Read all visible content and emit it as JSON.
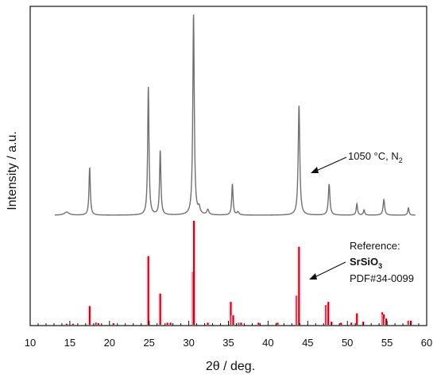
{
  "chart_data": {
    "type": "line",
    "xlabel": "2θ / deg.",
    "ylabel": "Intensity / a.u.",
    "xlim": [
      10,
      60
    ],
    "x_ticks": [
      10,
      15,
      20,
      25,
      30,
      35,
      40,
      45,
      50,
      55,
      60
    ],
    "y_ticks_shown": false,
    "grid": false,
    "colors": {
      "measured": "#707070",
      "reference": "#c00000",
      "reference_highlight": "#f2c4e8",
      "axis": "#111111"
    },
    "series": [
      {
        "name": "1050 °C, N2",
        "kind": "line",
        "baseline": 0,
        "peaks": [
          {
            "x": 14.6,
            "y": 1.5,
            "w": 0.35
          },
          {
            "x": 17.5,
            "y": 23,
            "w": 0.1
          },
          {
            "x": 24.9,
            "y": 62,
            "w": 0.1
          },
          {
            "x": 26.4,
            "y": 31,
            "w": 0.1
          },
          {
            "x": 30.6,
            "y": 97,
            "w": 0.11
          },
          {
            "x": 31.3,
            "y": 3,
            "w": 0.15
          },
          {
            "x": 32.4,
            "y": 2.5,
            "w": 0.15
          },
          {
            "x": 35.5,
            "y": 15,
            "w": 0.1
          },
          {
            "x": 36.2,
            "y": 1.5,
            "w": 0.15
          },
          {
            "x": 43.9,
            "y": 53,
            "w": 0.12
          },
          {
            "x": 47.7,
            "y": 15,
            "w": 0.12
          },
          {
            "x": 51.2,
            "y": 5.5,
            "w": 0.1
          },
          {
            "x": 52.1,
            "y": 2.5,
            "w": 0.1
          },
          {
            "x": 54.6,
            "y": 7.5,
            "w": 0.12
          },
          {
            "x": 57.7,
            "y": 3.5,
            "w": 0.1
          }
        ]
      },
      {
        "name": "Reference: SrSiO3 PDF#34-0099",
        "kind": "stick",
        "sticks": [
          {
            "x": 14.6,
            "y": 1
          },
          {
            "x": 15.4,
            "y": 1
          },
          {
            "x": 17.5,
            "y": 18
          },
          {
            "x": 18.3,
            "y": 2
          },
          {
            "x": 18.6,
            "y": 1.5
          },
          {
            "x": 20.5,
            "y": 1.5
          },
          {
            "x": 24.9,
            "y": 66
          },
          {
            "x": 26.4,
            "y": 30
          },
          {
            "x": 27.3,
            "y": 2
          },
          {
            "x": 27.7,
            "y": 2
          },
          {
            "x": 30.5,
            "y": 51
          },
          {
            "x": 30.65,
            "y": 100
          },
          {
            "x": 32.4,
            "y": 2
          },
          {
            "x": 35.3,
            "y": 22
          },
          {
            "x": 35.6,
            "y": 9
          },
          {
            "x": 36.3,
            "y": 2
          },
          {
            "x": 36.6,
            "y": 2
          },
          {
            "x": 38.8,
            "y": 2
          },
          {
            "x": 41.2,
            "y": 2
          },
          {
            "x": 43.6,
            "y": 28
          },
          {
            "x": 43.9,
            "y": 75
          },
          {
            "x": 47.3,
            "y": 19
          },
          {
            "x": 47.6,
            "y": 22
          },
          {
            "x": 48.0,
            "y": 3
          },
          {
            "x": 49.2,
            "y": 2
          },
          {
            "x": 50.5,
            "y": 2
          },
          {
            "x": 51.2,
            "y": 11
          },
          {
            "x": 52.0,
            "y": 3
          },
          {
            "x": 54.4,
            "y": 12
          },
          {
            "x": 54.6,
            "y": 10
          },
          {
            "x": 54.9,
            "y": 6
          },
          {
            "x": 57.7,
            "y": 4
          },
          {
            "x": 58.0,
            "y": 4
          }
        ]
      }
    ],
    "annotations": {
      "sample_label": "1050 °C, N",
      "sample_sub": "2",
      "ref_line1": "Reference:",
      "ref_formula": "SrSiO",
      "ref_formula_sub": "3",
      "ref_line3": "PDF#34-0099"
    }
  }
}
